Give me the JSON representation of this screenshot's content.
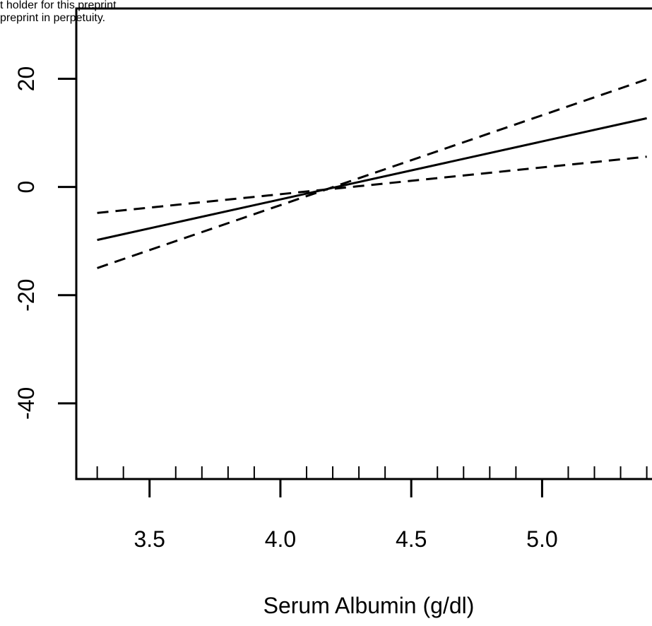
{
  "watermark": {
    "line1": "t holder for this preprint",
    "line2": "preprint in perpetuity."
  },
  "chart_data": {
    "type": "line",
    "title": "",
    "xlabel": "Serum Albumin (g/dl)",
    "ylabel": "",
    "xlim": [
      3.22,
      5.42
    ],
    "ylim": [
      -54,
      33
    ],
    "x_ticks": [
      3.5,
      4.0,
      4.5,
      5.0
    ],
    "x_tick_labels": [
      "3.5",
      "4.0",
      "4.5",
      "5.0"
    ],
    "x_minor_ticks": [
      3.3,
      3.4,
      3.6,
      3.7,
      3.8,
      3.9,
      4.1,
      4.2,
      4.3,
      4.4,
      4.6,
      4.7,
      4.8,
      4.9,
      5.1,
      5.2,
      5.3,
      5.4
    ],
    "y_ticks": [
      20,
      0,
      -20,
      -40
    ],
    "y_tick_labels": [
      "20",
      "0",
      "-20",
      "-40"
    ],
    "grid": false,
    "series": [
      {
        "style": "solid",
        "x": [
          3.3,
          5.4
        ],
        "y": [
          -9.8,
          12.7
        ]
      },
      {
        "style": "dashed",
        "x": [
          3.3,
          5.4
        ],
        "y": [
          -4.8,
          5.6
        ]
      },
      {
        "style": "dashed",
        "x": [
          3.3,
          5.4
        ],
        "y": [
          -15.0,
          19.9
        ]
      }
    ]
  }
}
